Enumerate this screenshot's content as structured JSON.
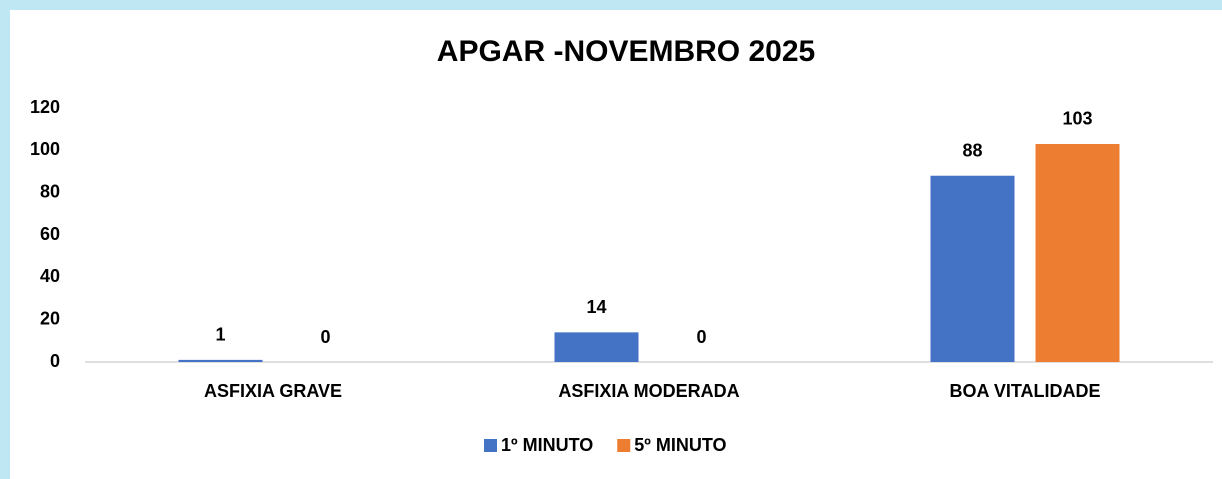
{
  "chart_data": {
    "type": "bar",
    "title": "APGAR -NOVEMBRO 2025",
    "categories": [
      "ASFIXIA GRAVE",
      "ASFIXIA MODERADA",
      "BOA VITALIDADE"
    ],
    "series": [
      {
        "name": "1º MINUTO",
        "color": "#4472c4",
        "values": [
          1,
          14,
          88
        ]
      },
      {
        "name": "5º MINUTO",
        "color": "#ed7d31",
        "values": [
          0,
          0,
          103
        ]
      }
    ],
    "ylim": [
      0,
      120
    ],
    "yticks": [
      0,
      20,
      40,
      60,
      80,
      100,
      120
    ],
    "grid": false,
    "legend": "bottom"
  }
}
